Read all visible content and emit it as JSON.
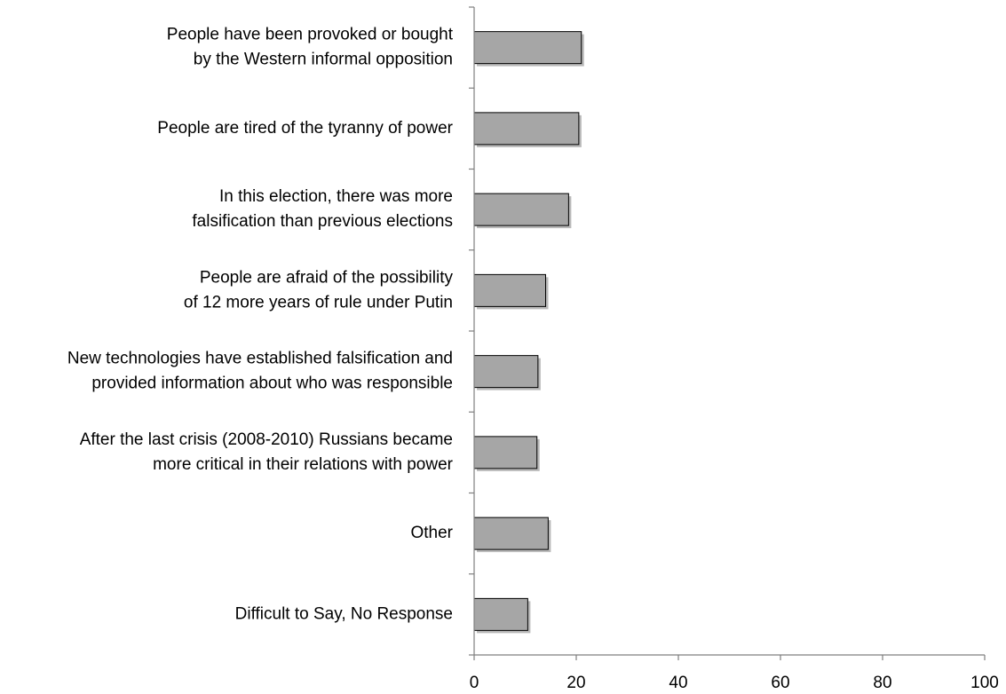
{
  "chart_data": {
    "type": "bar",
    "orientation": "horizontal",
    "categories": [
      [
        "People have been provoked or bought",
        "by the Western informal opposition"
      ],
      [
        "People are tired of the tyranny of power"
      ],
      [
        "In this election, there was more",
        "falsification than previous elections"
      ],
      [
        "People are afraid of the possibility",
        "of 12 more years of rule under Putin"
      ],
      [
        "New technologies have established falsification and",
        "provided information about who was responsible"
      ],
      [
        "After the last crisis (2008-2010) Russians became",
        "more critical in their relations with power"
      ],
      [
        "Other"
      ],
      [
        "Difficult to Say, No Response"
      ]
    ],
    "values": [
      21,
      20.5,
      18.5,
      14,
      12.5,
      12.3,
      14.5,
      10.5
    ],
    "xlim": [
      0,
      100
    ],
    "xticks": [
      0,
      20,
      40,
      60,
      80,
      100
    ],
    "title": "",
    "xlabel": "",
    "ylabel": "",
    "grid": false,
    "legend": "none",
    "bar_color": "#a6a6a6",
    "bar_edge_color": "#000000",
    "bar_shadow_color": "#7f7f7f",
    "axis_color": "#7f7f7f"
  }
}
